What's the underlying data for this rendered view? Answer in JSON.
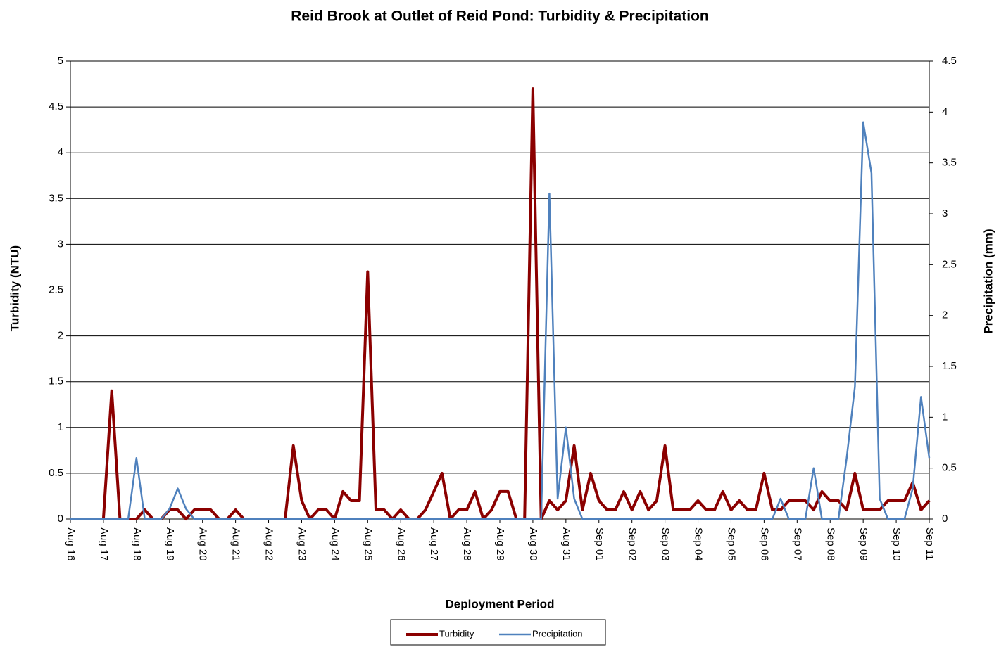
{
  "chart_data": {
    "type": "line",
    "title": "Reid Brook at Outlet of Reid Pond: Turbidity & Precipitation",
    "x_label": "Deployment Period",
    "y_label": "Turbidity (NTU)",
    "y2_label": "Precipitation (mm)",
    "categories": [
      "Aug 16",
      null,
      null,
      null,
      "Aug 17",
      null,
      null,
      null,
      "Aug 18",
      null,
      null,
      null,
      "Aug 19",
      null,
      null,
      null,
      "Aug 20",
      null,
      null,
      null,
      "Aug 21",
      null,
      null,
      null,
      "Aug 22",
      null,
      null,
      null,
      "Aug 23",
      null,
      null,
      null,
      "Aug 24",
      null,
      null,
      null,
      "Aug 25",
      null,
      null,
      null,
      "Aug 26",
      null,
      null,
      null,
      "Aug 27",
      null,
      null,
      null,
      "Aug 28",
      null,
      null,
      null,
      "Aug 29",
      null,
      null,
      null,
      "Aug 30",
      null,
      null,
      null,
      "Aug 31",
      null,
      null,
      null,
      "Sep 01",
      null,
      null,
      null,
      "Sep 02",
      null,
      null,
      null,
      "Sep 03",
      null,
      null,
      null,
      "Sep 04",
      null,
      null,
      null,
      "Sep 05",
      null,
      null,
      null,
      "Sep 06",
      null,
      null,
      null,
      "Sep 07",
      null,
      null,
      null,
      "Sep 08",
      null,
      null,
      null,
      "Sep 09",
      null,
      null,
      null,
      "Sep 10",
      null,
      null,
      null,
      "Sep 11"
    ],
    "series": [
      {
        "name": "Turbidity",
        "color": "#8b0000",
        "axis": "y",
        "values": [
          0,
          0,
          0,
          0,
          0,
          1.4,
          0,
          0,
          0,
          0.1,
          0,
          0,
          0.1,
          0.1,
          0,
          0.1,
          0.1,
          0.1,
          0,
          0,
          0.1,
          0,
          0,
          0,
          0,
          0,
          0,
          0.8,
          0.2,
          0,
          0.1,
          0.1,
          0,
          0.3,
          0.2,
          0.2,
          2.7,
          0.1,
          0.1,
          0,
          0.1,
          0,
          0,
          0.1,
          0.3,
          0.5,
          0,
          0.1,
          0.1,
          0.3,
          0,
          0.1,
          0.3,
          0.3,
          0,
          0,
          4.7,
          0,
          0.2,
          0.1,
          0.2,
          0.8,
          0.1,
          0.5,
          0.2,
          0.1,
          0.1,
          0.3,
          0.1,
          0.3,
          0.1,
          0.2,
          0.8,
          0.1,
          0.1,
          0.1,
          0.2,
          0.1,
          0.1,
          0.3,
          0.1,
          0.2,
          0.1,
          0.1,
          0.5,
          0.1,
          0.1,
          0.2,
          0.2,
          0.2,
          0.1,
          0.3,
          0.2,
          0.2,
          0.1,
          0.5,
          0.1,
          0.1,
          0.1,
          0.2,
          0.2,
          0.2,
          0.4,
          0.1,
          0.2
        ]
      },
      {
        "name": "Precipitation",
        "color": "#4f81bd",
        "axis": "y2",
        "values": [
          0,
          0,
          0,
          0,
          0,
          0,
          0,
          0,
          0.6,
          0,
          0,
          0,
          0.1,
          0.3,
          0.1,
          0,
          0,
          0,
          0,
          0,
          0,
          0,
          0,
          0,
          0,
          0,
          0,
          0,
          0,
          0,
          0,
          0,
          0,
          0,
          0,
          0,
          0,
          0,
          0,
          0,
          0,
          0,
          0,
          0,
          0,
          0,
          0,
          0,
          0,
          0,
          0,
          0,
          0,
          0,
          0,
          0,
          0,
          0,
          3.2,
          0.2,
          0.9,
          0.2,
          0,
          0,
          0,
          0,
          0,
          0,
          0,
          0,
          0,
          0,
          0,
          0,
          0,
          0,
          0,
          0,
          0,
          0,
          0,
          0,
          0,
          0,
          0,
          0,
          0.2,
          0,
          0,
          0,
          0.5,
          0,
          0,
          0,
          0.6,
          1.3,
          3.9,
          3.4,
          0.2,
          0,
          0,
          0,
          0.3,
          1.2,
          0.6
        ]
      }
    ],
    "ylim": [
      0,
      5
    ],
    "yticks": [
      0,
      0.5,
      1,
      1.5,
      2,
      2.5,
      3,
      3.5,
      4,
      4.5,
      5
    ],
    "y2lim": [
      0,
      4.5
    ],
    "y2ticks": [
      0,
      0.5,
      1,
      1.5,
      2,
      2.5,
      3,
      3.5,
      4,
      4.5
    ],
    "grid": true
  }
}
